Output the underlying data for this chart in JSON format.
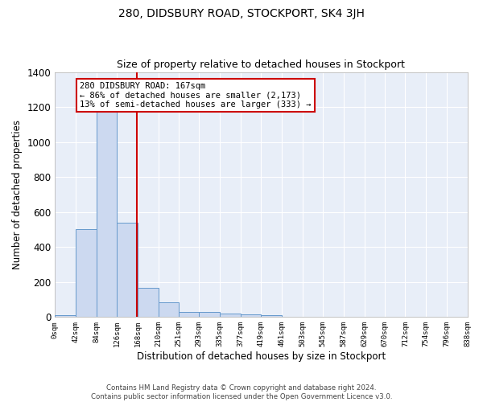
{
  "title": "280, DIDSBURY ROAD, STOCKPORT, SK4 3JH",
  "subtitle": "Size of property relative to detached houses in Stockport",
  "xlabel": "Distribution of detached houses by size in Stockport",
  "ylabel": "Number of detached properties",
  "bar_color": "#ccd9f0",
  "bar_edge_color": "#6699cc",
  "background_color": "#e8eef8",
  "grid_color": "#ffffff",
  "bin_edges": [
    0,
    42,
    84,
    126,
    168,
    210,
    251,
    293,
    335,
    377,
    419,
    461,
    503,
    545,
    587,
    629,
    670,
    712,
    754,
    796,
    838
  ],
  "bar_heights": [
    10,
    500,
    1175,
    540,
    165,
    85,
    30,
    30,
    20,
    15,
    10,
    0,
    0,
    0,
    0,
    0,
    0,
    0,
    0,
    0
  ],
  "property_line_x": 167,
  "property_line_color": "#cc0000",
  "ylim": [
    0,
    1400
  ],
  "yticks": [
    0,
    200,
    400,
    600,
    800,
    1000,
    1200,
    1400
  ],
  "annotation_line1": "280 DIDSBURY ROAD: 167sqm",
  "annotation_line2": "← 86% of detached houses are smaller (2,173)",
  "annotation_line3": "13% of semi-detached houses are larger (333) →",
  "footer": "Contains HM Land Registry data © Crown copyright and database right 2024.\nContains public sector information licensed under the Open Government Licence v3.0.",
  "tick_labels": [
    "0sqm",
    "42sqm",
    "84sqm",
    "126sqm",
    "168sqm",
    "210sqm",
    "251sqm",
    "293sqm",
    "335sqm",
    "377sqm",
    "419sqm",
    "461sqm",
    "503sqm",
    "545sqm",
    "587sqm",
    "629sqm",
    "670sqm",
    "712sqm",
    "754sqm",
    "796sqm",
    "838sqm"
  ]
}
